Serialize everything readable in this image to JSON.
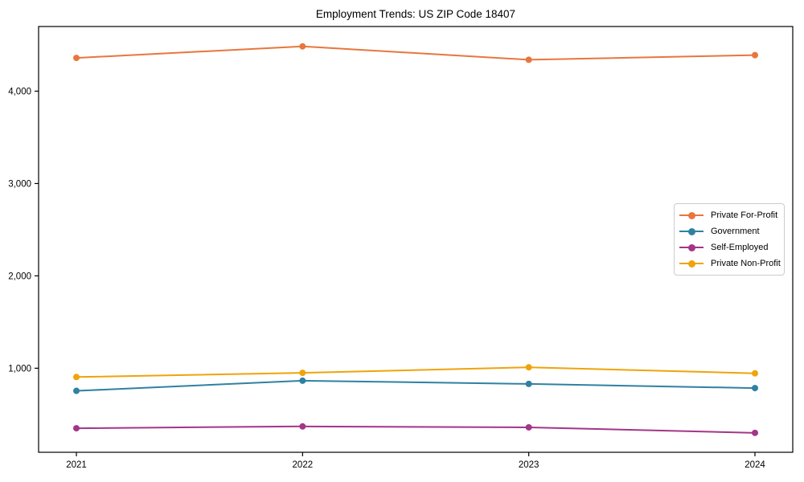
{
  "figure": {
    "title": "Employment Trends: US ZIP Code 18407"
  },
  "chart_data": {
    "type": "line",
    "title": "Employment Trends: US ZIP Code 18407",
    "xlabel": "",
    "ylabel": "",
    "x": [
      "2021",
      "2022",
      "2023",
      "2024"
    ],
    "series": [
      {
        "name": "Private For-Profit",
        "color": "#E8763D",
        "values": [
          4360,
          4485,
          4340,
          4390
        ]
      },
      {
        "name": "Government",
        "color": "#2F81A2",
        "values": [
          755,
          865,
          830,
          785
        ]
      },
      {
        "name": "Self-Employed",
        "color": "#A43589",
        "values": [
          350,
          370,
          360,
          300
        ]
      },
      {
        "name": "Private Non-Profit",
        "color": "#F0A30A",
        "values": [
          905,
          950,
          1010,
          945
        ]
      }
    ],
    "ylim": [
      90,
      4700
    ],
    "yticks": [
      1000,
      2000,
      3000,
      4000
    ],
    "ytick_labels": [
      "1,000",
      "2,000",
      "3,000",
      "4,000"
    ],
    "grid": false,
    "legend_position": "center right",
    "marker": "circle",
    "line_width": 2,
    "marker_size": 8,
    "axis_color": "#000000",
    "background": "#ffffff"
  }
}
